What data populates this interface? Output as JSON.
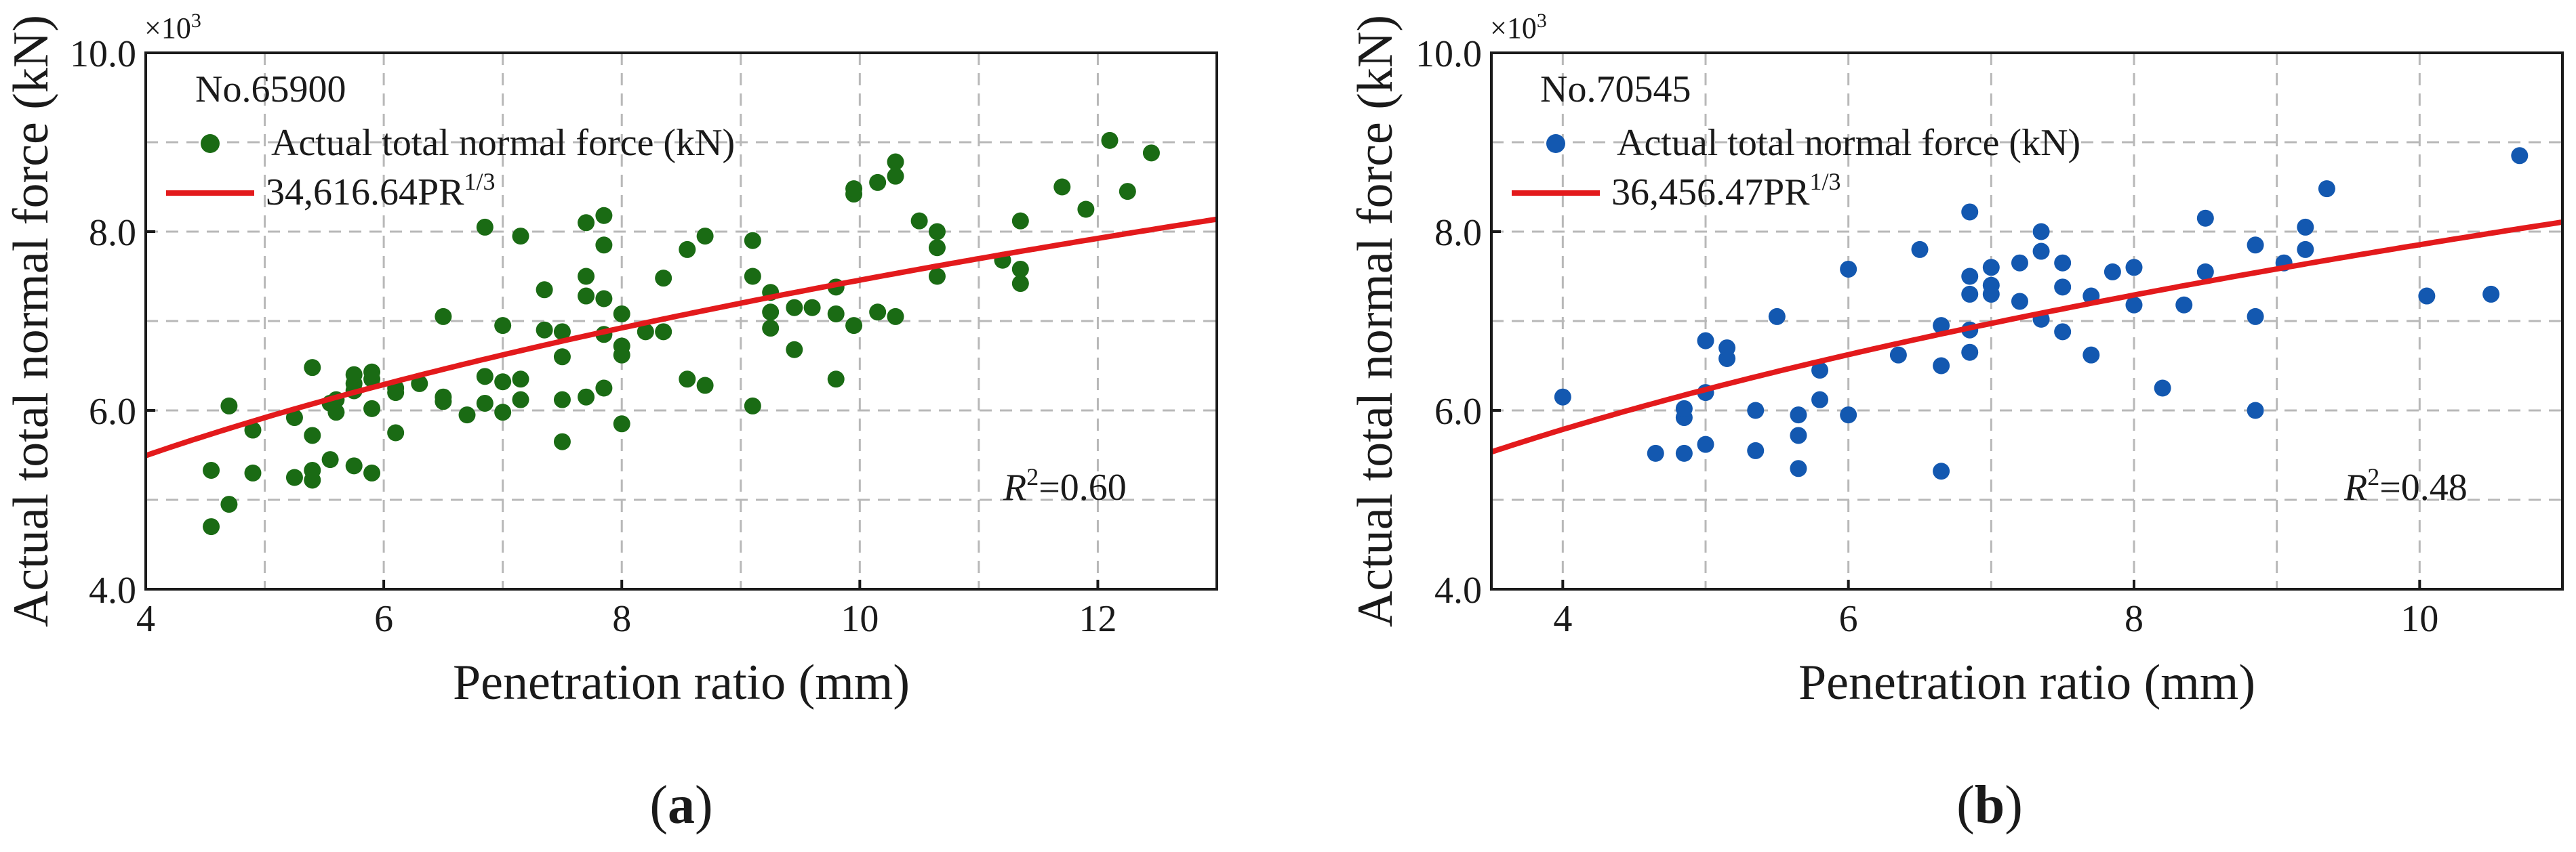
{
  "chart_data": [
    {
      "type": "scatter",
      "panel_label": "a",
      "annotation": "No.65900",
      "multiplier_label": "×10",
      "multiplier_exp": "3",
      "xlabel": "Penetration ratio (mm)",
      "ylabel": "Actual total normal force (kN)",
      "xlim": [
        4,
        13
      ],
      "ylim": [
        4,
        10
      ],
      "xticks": [
        4,
        6,
        8,
        10,
        12
      ],
      "yticks": [
        4,
        6,
        8,
        10
      ],
      "ytick_labels": [
        "4.0",
        "6.0",
        "8.0",
        "10.0"
      ],
      "grid": true,
      "colors": {
        "points": "#1a6b14",
        "fit": "#e31a1c"
      },
      "legend": {
        "points_label": "Actual total normal force (kN)",
        "fit_label": "34,616.64PR",
        "fit_exp": "1/3"
      },
      "r2": {
        "letter": "R",
        "exp": "2",
        "value": "=0.60"
      },
      "fit": {
        "coef": 3.46166,
        "power": 0.3333
      },
      "points": [
        [
          4.55,
          4.7
        ],
        [
          4.55,
          5.33
        ],
        [
          4.7,
          4.95
        ],
        [
          4.7,
          6.05
        ],
        [
          4.9,
          5.3
        ],
        [
          4.9,
          5.78
        ],
        [
          5.25,
          5.25
        ],
        [
          5.25,
          5.92
        ],
        [
          5.4,
          5.22
        ],
        [
          5.4,
          5.33
        ],
        [
          5.4,
          5.72
        ],
        [
          5.4,
          6.48
        ],
        [
          5.55,
          5.45
        ],
        [
          5.55,
          6.08
        ],
        [
          5.6,
          6.12
        ],
        [
          5.6,
          5.98
        ],
        [
          5.75,
          5.38
        ],
        [
          5.75,
          6.22
        ],
        [
          5.75,
          6.3
        ],
        [
          5.75,
          6.4
        ],
        [
          5.9,
          5.3
        ],
        [
          5.9,
          6.02
        ],
        [
          5.9,
          6.35
        ],
        [
          5.9,
          6.43
        ],
        [
          6.1,
          5.75
        ],
        [
          6.1,
          6.2
        ],
        [
          6.1,
          6.25
        ],
        [
          6.3,
          6.3
        ],
        [
          6.5,
          6.1
        ],
        [
          6.5,
          6.15
        ],
        [
          6.5,
          7.05
        ],
        [
          6.7,
          5.95
        ],
        [
          6.85,
          6.08
        ],
        [
          6.85,
          6.38
        ],
        [
          6.85,
          8.05
        ],
        [
          7.0,
          5.98
        ],
        [
          7.0,
          6.32
        ],
        [
          7.0,
          6.95
        ],
        [
          7.15,
          6.12
        ],
        [
          7.15,
          6.35
        ],
        [
          7.15,
          7.95
        ],
        [
          7.35,
          6.9
        ],
        [
          7.35,
          7.35
        ],
        [
          7.5,
          5.65
        ],
        [
          7.5,
          6.12
        ],
        [
          7.5,
          6.6
        ],
        [
          7.5,
          6.88
        ],
        [
          7.7,
          6.15
        ],
        [
          7.7,
          7.28
        ],
        [
          7.7,
          7.5
        ],
        [
          7.7,
          8.1
        ],
        [
          7.85,
          6.25
        ],
        [
          7.85,
          6.85
        ],
        [
          7.85,
          7.25
        ],
        [
          7.85,
          7.85
        ],
        [
          7.85,
          8.18
        ],
        [
          8.0,
          5.85
        ],
        [
          8.0,
          6.62
        ],
        [
          8.0,
          6.72
        ],
        [
          8.0,
          7.08
        ],
        [
          8.2,
          6.88
        ],
        [
          8.35,
          6.88
        ],
        [
          8.35,
          7.48
        ],
        [
          8.55,
          6.35
        ],
        [
          8.55,
          7.8
        ],
        [
          8.7,
          6.28
        ],
        [
          8.7,
          7.95
        ],
        [
          9.1,
          6.05
        ],
        [
          9.1,
          7.5
        ],
        [
          9.1,
          7.9
        ],
        [
          9.25,
          6.92
        ],
        [
          9.25,
          7.1
        ],
        [
          9.25,
          7.32
        ],
        [
          9.45,
          6.68
        ],
        [
          9.45,
          7.15
        ],
        [
          9.6,
          7.15
        ],
        [
          9.8,
          6.35
        ],
        [
          9.8,
          7.08
        ],
        [
          9.8,
          7.38
        ],
        [
          9.95,
          6.95
        ],
        [
          9.95,
          8.42
        ],
        [
          9.95,
          8.48
        ],
        [
          10.15,
          7.1
        ],
        [
          10.15,
          8.55
        ],
        [
          10.3,
          7.05
        ],
        [
          10.3,
          8.62
        ],
        [
          10.3,
          8.78
        ],
        [
          10.5,
          8.12
        ],
        [
          10.65,
          7.5
        ],
        [
          10.65,
          7.82
        ],
        [
          10.65,
          8.0
        ],
        [
          11.2,
          7.68
        ],
        [
          11.35,
          7.42
        ],
        [
          11.35,
          7.58
        ],
        [
          11.35,
          8.12
        ],
        [
          11.7,
          8.5
        ],
        [
          11.9,
          8.25
        ],
        [
          12.1,
          9.02
        ],
        [
          12.25,
          8.45
        ],
        [
          12.45,
          8.88
        ]
      ]
    },
    {
      "type": "scatter",
      "panel_label": "b",
      "annotation": "No.70545",
      "multiplier_label": "×10",
      "multiplier_exp": "3",
      "xlabel": "Penetration ratio (mm)",
      "ylabel": "Actual total normal force (kN)",
      "xlim": [
        3.5,
        11
      ],
      "ylim": [
        4,
        10
      ],
      "xticks": [
        4,
        6,
        8,
        10
      ],
      "yticks": [
        4,
        6,
        8,
        10
      ],
      "ytick_labels": [
        "4.0",
        "6.0",
        "8.0",
        "10.0"
      ],
      "grid": true,
      "colors": {
        "points": "#1358b0",
        "fit": "#e31a1c"
      },
      "legend": {
        "points_label": "Actual total normal force (kN)",
        "fit_label": "36,456.47PR",
        "fit_exp": "1/3"
      },
      "r2": {
        "letter": "R",
        "exp": "2",
        "value": "=0.48"
      },
      "fit": {
        "coef": 3.64565,
        "power": 0.3333
      },
      "points": [
        [
          4.0,
          6.15
        ],
        [
          4.65,
          5.52
        ],
        [
          4.85,
          5.52
        ],
        [
          4.85,
          5.92
        ],
        [
          4.85,
          6.02
        ],
        [
          5.0,
          5.62
        ],
        [
          5.0,
          6.2
        ],
        [
          5.0,
          6.78
        ],
        [
          5.15,
          6.58
        ],
        [
          5.15,
          6.7
        ],
        [
          5.35,
          5.55
        ],
        [
          5.35,
          6.0
        ],
        [
          5.5,
          7.05
        ],
        [
          5.65,
          5.35
        ],
        [
          5.65,
          5.72
        ],
        [
          5.65,
          5.95
        ],
        [
          5.8,
          6.12
        ],
        [
          5.8,
          6.45
        ],
        [
          6.0,
          5.95
        ],
        [
          6.0,
          7.58
        ],
        [
          6.35,
          6.62
        ],
        [
          6.5,
          7.8
        ],
        [
          6.65,
          5.32
        ],
        [
          6.65,
          6.5
        ],
        [
          6.65,
          6.95
        ],
        [
          6.85,
          6.65
        ],
        [
          6.85,
          6.9
        ],
        [
          6.85,
          7.3
        ],
        [
          6.85,
          7.5
        ],
        [
          6.85,
          8.22
        ],
        [
          7.0,
          7.3
        ],
        [
          7.0,
          7.4
        ],
        [
          7.0,
          7.6
        ],
        [
          7.2,
          7.22
        ],
        [
          7.2,
          7.65
        ],
        [
          7.35,
          7.02
        ],
        [
          7.35,
          7.78
        ],
        [
          7.35,
          8.0
        ],
        [
          7.5,
          6.88
        ],
        [
          7.5,
          7.38
        ],
        [
          7.5,
          7.65
        ],
        [
          7.7,
          6.62
        ],
        [
          7.7,
          7.28
        ],
        [
          7.85,
          7.55
        ],
        [
          8.0,
          7.18
        ],
        [
          8.0,
          7.6
        ],
        [
          8.2,
          6.25
        ],
        [
          8.35,
          7.18
        ],
        [
          8.5,
          7.55
        ],
        [
          8.5,
          8.15
        ],
        [
          8.85,
          6.0
        ],
        [
          8.85,
          7.05
        ],
        [
          8.85,
          7.85
        ],
        [
          9.05,
          7.65
        ],
        [
          9.2,
          7.8
        ],
        [
          9.2,
          8.05
        ],
        [
          9.35,
          8.48
        ],
        [
          10.05,
          7.28
        ],
        [
          10.5,
          7.3
        ],
        [
          10.7,
          8.85
        ]
      ]
    }
  ]
}
